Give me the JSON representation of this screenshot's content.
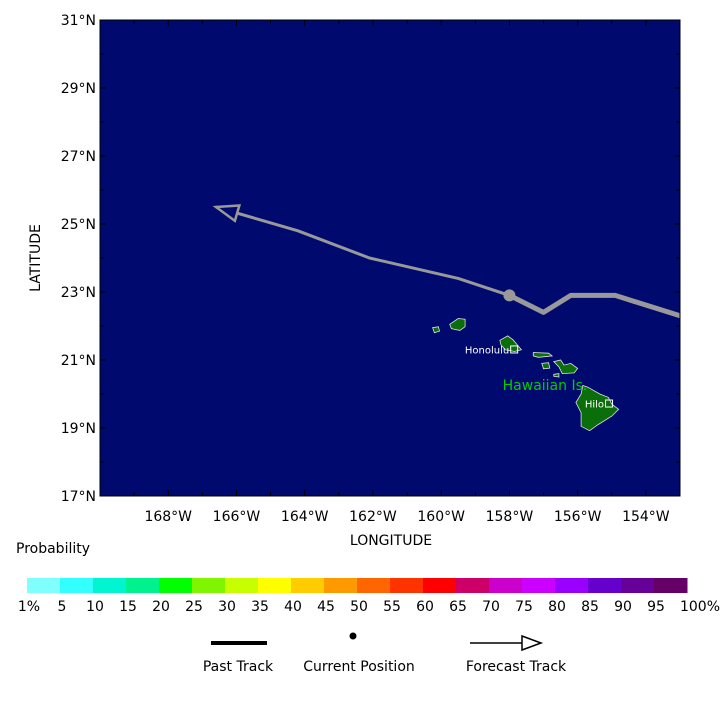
{
  "map": {
    "lat_labels": [
      "31°N",
      "29°N",
      "27°N",
      "25°N",
      "23°N",
      "21°N",
      "19°N",
      "17°N"
    ],
    "lat_values": [
      31,
      29,
      27,
      25,
      23,
      21,
      19,
      17
    ],
    "lon_labels": [
      "168°W",
      "166°W",
      "164°W",
      "162°W",
      "160°W",
      "158°W",
      "156°W",
      "154°W"
    ],
    "lon_values": [
      -168,
      -166,
      -164,
      -162,
      -160,
      -158,
      -156,
      -154
    ],
    "lon_range": [
      -170,
      -153
    ],
    "lat_range": [
      17,
      31
    ],
    "xlabel": "LONGITUDE",
    "ylabel": "LATITUDE",
    "ocean_color": "#000a6e",
    "land_color": "#0a6e0a",
    "track_color": "#999999",
    "past_track": [
      [
        -153,
        22.3
      ],
      [
        -154.9,
        22.9
      ],
      [
        -156.2,
        22.9
      ],
      [
        -157.0,
        22.4
      ],
      [
        -158.0,
        22.9
      ]
    ],
    "current_position": [
      -158.0,
      22.9
    ],
    "forecast_track": [
      [
        -158.0,
        22.9
      ],
      [
        -159.5,
        23.4
      ],
      [
        -162.1,
        24.0
      ],
      [
        -164.2,
        24.8
      ],
      [
        -166.6,
        25.5
      ]
    ],
    "cities": [
      {
        "name": "Honolulu",
        "lon": -157.86,
        "lat": 21.31
      },
      {
        "name": "Hilo",
        "lon": -155.08,
        "lat": 19.72
      }
    ],
    "region_label": "Hawaiian Is.",
    "region_label_color": "#00cc00"
  },
  "legend": {
    "title": "Probability",
    "colors": [
      "#80ffff",
      "#33ffff",
      "#00f5d0",
      "#00f28c",
      "#00ff00",
      "#7ff500",
      "#c8ff00",
      "#ffff00",
      "#ffcc00",
      "#ff9900",
      "#ff6600",
      "#ff3300",
      "#ff0000",
      "#cc0066",
      "#cc00cc",
      "#cc00ff",
      "#9900ff",
      "#6600cc",
      "#660099",
      "#660066"
    ],
    "labels": [
      "1%",
      "5",
      "10",
      "15",
      "20",
      "25",
      "30",
      "35",
      "40",
      "45",
      "50",
      "55",
      "60",
      "65",
      "70",
      "75",
      "80",
      "85",
      "90",
      "95",
      "100%"
    ],
    "past_track_label": "Past Track",
    "current_position_label": "Current Position",
    "forecast_track_label": "Forecast Track"
  }
}
